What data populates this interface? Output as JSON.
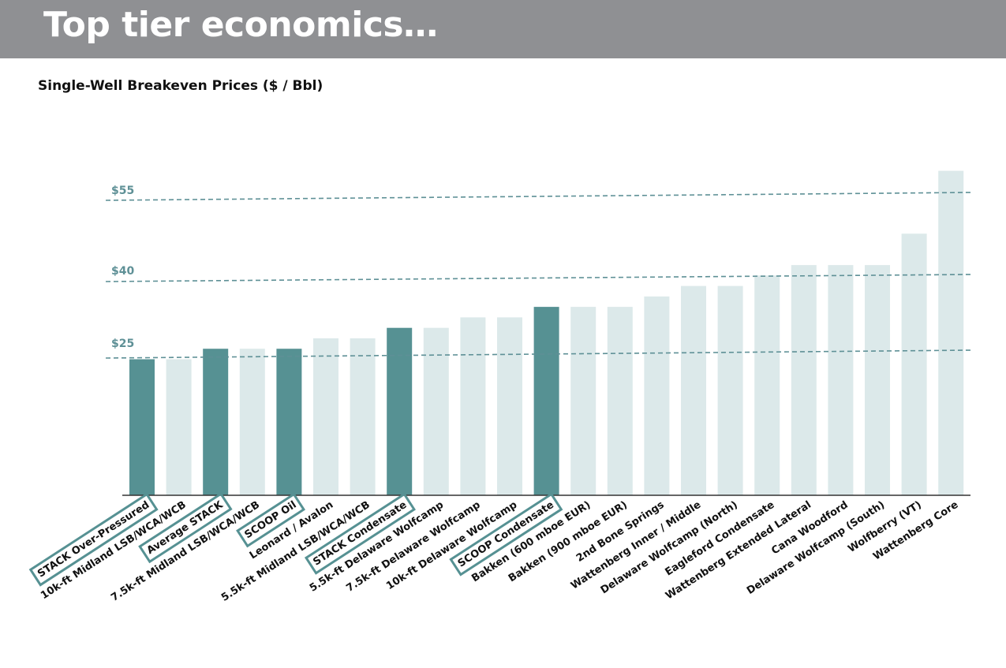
{
  "header": {
    "title": "Top tier economics…"
  },
  "chart_data": {
    "type": "bar",
    "title": "Single-Well Breakeven Prices ($ / Bbl)",
    "xlabel": "",
    "ylabel": "",
    "ylim": [
      0,
      63
    ],
    "grid": false,
    "legend": "none",
    "categories": [
      "STACK Over-Pressured",
      "10k-ft Midland LSB/WCA/WCB",
      "Average STACK",
      "7.5k-ft Midland LSB/WCA/WCB",
      "SCOOP Oil",
      "Leonard / Avalon",
      "5.5k-ft Midland LSB/WCA/WCB",
      "STACK Condensate",
      "5.5k-ft Delaware Wolfcamp",
      "7.5k-ft Delaware Wolfcamp",
      "10k-ft Delaware Wolfcamp",
      "SCOOP Condensate",
      "Bakken (600 mboe EUR)",
      "Bakken (900 mboe EUR)",
      "2nd Bone Springs",
      "Wattenberg Inner / Middle",
      "Delaware Wolfcamp (North)",
      "Eagleford Condensate",
      "Wattenberg Extended Lateral",
      "Cana Woodford",
      "Delaware Wolfcamp (South)",
      "Wolfberry (VT)",
      "Wattenberg Core"
    ],
    "values": [
      26,
      26,
      28,
      28,
      28,
      30,
      30,
      32,
      32,
      34,
      34,
      36,
      36,
      36,
      38,
      40,
      40,
      42,
      44,
      44,
      44,
      50,
      62
    ],
    "highlighted": [
      true,
      false,
      true,
      false,
      true,
      false,
      false,
      true,
      false,
      false,
      false,
      true,
      false,
      false,
      false,
      false,
      false,
      false,
      false,
      false,
      false,
      false,
      false
    ],
    "reference_lines": [
      {
        "label": "$55",
        "value": 55
      },
      {
        "label": "$40",
        "value": 40
      },
      {
        "label": "$25",
        "value": 25
      }
    ],
    "colors": {
      "highlight": "#569193",
      "normal": "#dce9ea",
      "reference": "#5e9096",
      "axis": "#333333"
    }
  }
}
